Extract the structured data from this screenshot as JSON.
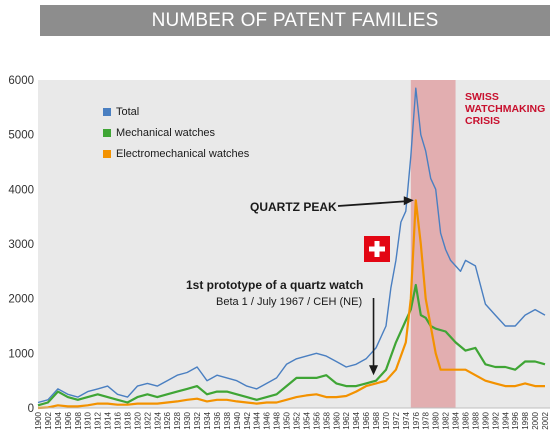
{
  "chart_data": {
    "type": "line",
    "title": "NUMBER OF PATENT FAMILIES",
    "xlabel": "",
    "ylabel": "",
    "ylim": [
      0,
      6000
    ],
    "xlim": [
      1900,
      2003
    ],
    "y_ticks": [
      0,
      1000,
      2000,
      3000,
      4000,
      5000,
      6000
    ],
    "x_ticks": [
      "1900",
      "1902",
      "1904",
      "1906",
      "1908",
      "1910",
      "1912",
      "1914",
      "1916",
      "1918",
      "1920",
      "1922",
      "1924",
      "1926",
      "1928",
      "1930",
      "1932",
      "1934",
      "1936",
      "1938",
      "1940",
      "1942",
      "1944",
      "1946",
      "1948",
      "1950",
      "1952",
      "1954",
      "1956",
      "1958",
      "1960",
      "1962",
      "1964",
      "1966",
      "1968",
      "1970",
      "1972",
      "1974",
      "1976",
      "1978",
      "1980",
      "1982",
      "1984",
      "1986",
      "1988",
      "1990",
      "1992",
      "1994",
      "1996",
      "1998",
      "2000",
      "2002"
    ],
    "grid": false,
    "legend_position": "top-left",
    "series": [
      {
        "name": "Total",
        "color": "#4a7fc1",
        "x": [
          1900,
          1902,
          1904,
          1906,
          1908,
          1910,
          1912,
          1914,
          1916,
          1918,
          1920,
          1922,
          1924,
          1926,
          1928,
          1930,
          1932,
          1934,
          1936,
          1938,
          1940,
          1942,
          1944,
          1946,
          1948,
          1950,
          1952,
          1954,
          1956,
          1958,
          1960,
          1962,
          1964,
          1966,
          1968,
          1970,
          1971,
          1972,
          1973,
          1974,
          1975,
          1976,
          1977,
          1978,
          1979,
          1980,
          1981,
          1982,
          1983,
          1984,
          1985,
          1986,
          1988,
          1990,
          1992,
          1994,
          1996,
          1998,
          2000,
          2002
        ],
        "values": [
          100,
          150,
          350,
          250,
          200,
          300,
          350,
          400,
          250,
          200,
          400,
          450,
          400,
          500,
          600,
          650,
          750,
          500,
          600,
          550,
          500,
          400,
          350,
          450,
          550,
          800,
          900,
          950,
          1000,
          950,
          850,
          750,
          800,
          900,
          1100,
          1500,
          2200,
          2700,
          3400,
          3600,
          4600,
          5850,
          5000,
          4700,
          4200,
          4000,
          3200,
          2900,
          2700,
          2600,
          2500,
          2700,
          2600,
          1900,
          1700,
          1500,
          1500,
          1700,
          1800,
          1700
        ]
      },
      {
        "name": "Mechanical watches",
        "color": "#3fa535",
        "x": [
          1900,
          1902,
          1904,
          1906,
          1908,
          1910,
          1912,
          1914,
          1916,
          1918,
          1920,
          1922,
          1924,
          1926,
          1928,
          1930,
          1932,
          1934,
          1936,
          1938,
          1940,
          1942,
          1944,
          1946,
          1948,
          1950,
          1952,
          1954,
          1956,
          1958,
          1960,
          1962,
          1964,
          1966,
          1968,
          1970,
          1972,
          1974,
          1975,
          1976,
          1977,
          1978,
          1979,
          1980,
          1982,
          1984,
          1986,
          1988,
          1990,
          1992,
          1994,
          1996,
          1998,
          2000,
          2002
        ],
        "values": [
          50,
          100,
          300,
          200,
          150,
          200,
          250,
          200,
          150,
          100,
          200,
          250,
          200,
          250,
          300,
          350,
          400,
          250,
          300,
          300,
          250,
          200,
          150,
          200,
          250,
          400,
          550,
          550,
          550,
          600,
          450,
          400,
          400,
          450,
          500,
          700,
          1200,
          1600,
          1800,
          2250,
          1700,
          1650,
          1500,
          1450,
          1400,
          1200,
          1050,
          1100,
          800,
          750,
          750,
          700,
          850,
          850,
          800
        ]
      },
      {
        "name": "Electromechanical watches",
        "color": "#f39200",
        "x": [
          1900,
          1902,
          1904,
          1906,
          1908,
          1910,
          1912,
          1914,
          1916,
          1918,
          1920,
          1922,
          1924,
          1926,
          1928,
          1930,
          1932,
          1934,
          1936,
          1938,
          1940,
          1942,
          1944,
          1946,
          1948,
          1950,
          1952,
          1954,
          1956,
          1958,
          1960,
          1962,
          1964,
          1966,
          1968,
          1970,
          1972,
          1974,
          1975,
          1976,
          1977,
          1978,
          1979,
          1980,
          1981,
          1982,
          1984,
          1986,
          1988,
          1990,
          1992,
          1994,
          1996,
          1998,
          2000,
          2002
        ],
        "values": [
          0,
          10,
          50,
          30,
          30,
          50,
          80,
          80,
          60,
          60,
          80,
          80,
          80,
          100,
          120,
          150,
          170,
          120,
          150,
          150,
          120,
          100,
          80,
          100,
          100,
          150,
          200,
          230,
          250,
          200,
          200,
          220,
          300,
          400,
          450,
          500,
          700,
          1200,
          2000,
          3800,
          3000,
          2000,
          1500,
          1000,
          700,
          700,
          700,
          700,
          600,
          500,
          450,
          400,
          400,
          450,
          400,
          400
        ]
      }
    ],
    "shaded_region": {
      "x_range": [
        1975,
        1984
      ],
      "label_lines": [
        "SWISS",
        "WATCHMAKING",
        "CRISIS"
      ],
      "color": "#e0a3a6",
      "label_color": "#c8102e"
    },
    "annotations": [
      {
        "id": "quartz-peak",
        "text": "QUARTZ PEAK",
        "arrow_to": {
          "x": 1975.8,
          "y": 3800
        }
      },
      {
        "id": "prototype",
        "title": "1st prototype of a quartz watch",
        "subtitle": "Beta 1 / July 1967 / CEH (NE)",
        "arrow_to": {
          "x": 1967.5,
          "y": 600
        }
      }
    ]
  }
}
